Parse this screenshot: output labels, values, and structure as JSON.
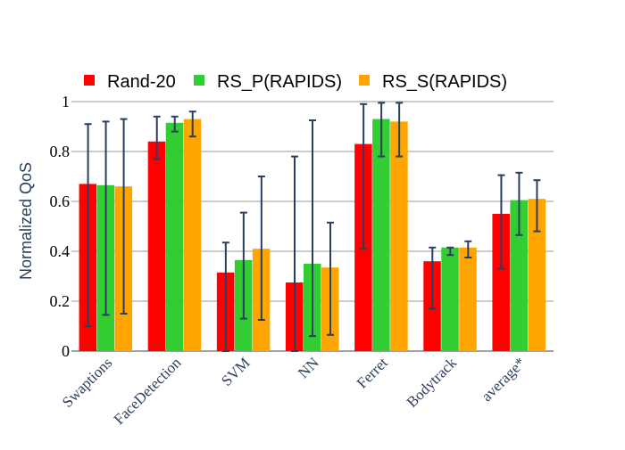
{
  "chart_data": {
    "type": "bar",
    "title": "",
    "xlabel": "",
    "ylabel": "Normalized QoS",
    "ylim": [
      0,
      1
    ],
    "yticks": [
      0,
      0.2,
      0.4,
      0.6,
      0.8,
      1
    ],
    "ytick_labels": [
      "0",
      "0.2",
      "0.4",
      "0.6",
      "0.8",
      "1"
    ],
    "grid": true,
    "legend_position": "top-left",
    "categories": [
      "Swaptions",
      "FaceDetection",
      "SVM",
      "NN",
      "Ferret",
      "Bodytrack",
      "average*"
    ],
    "series": [
      {
        "name": "Rand-20",
        "color": "#ff0000",
        "values": [
          0.67,
          0.84,
          0.315,
          0.275,
          0.83,
          0.36,
          0.55
        ],
        "error_low": [
          0.1,
          0.77,
          0.0,
          0.0,
          0.41,
          0.17,
          0.33
        ],
        "error_high": [
          0.91,
          0.94,
          0.435,
          0.78,
          0.99,
          0.415,
          0.705
        ]
      },
      {
        "name": "RS_P(RAPIDS)",
        "color": "#32cd32",
        "values": [
          0.665,
          0.915,
          0.365,
          0.35,
          0.93,
          0.415,
          0.605
        ],
        "error_low": [
          0.145,
          0.88,
          0.13,
          0.06,
          0.78,
          0.385,
          0.465
        ],
        "error_high": [
          0.92,
          0.94,
          0.555,
          0.925,
          0.995,
          0.415,
          0.715
        ]
      },
      {
        "name": "RS_S(RAPIDS)",
        "color": "#ffa500",
        "values": [
          0.66,
          0.93,
          0.41,
          0.335,
          0.92,
          0.415,
          0.61
        ],
        "error_low": [
          0.15,
          0.86,
          0.125,
          0.065,
          0.78,
          0.375,
          0.48
        ],
        "error_high": [
          0.93,
          0.96,
          0.7,
          0.515,
          0.995,
          0.44,
          0.685
        ]
      }
    ]
  }
}
